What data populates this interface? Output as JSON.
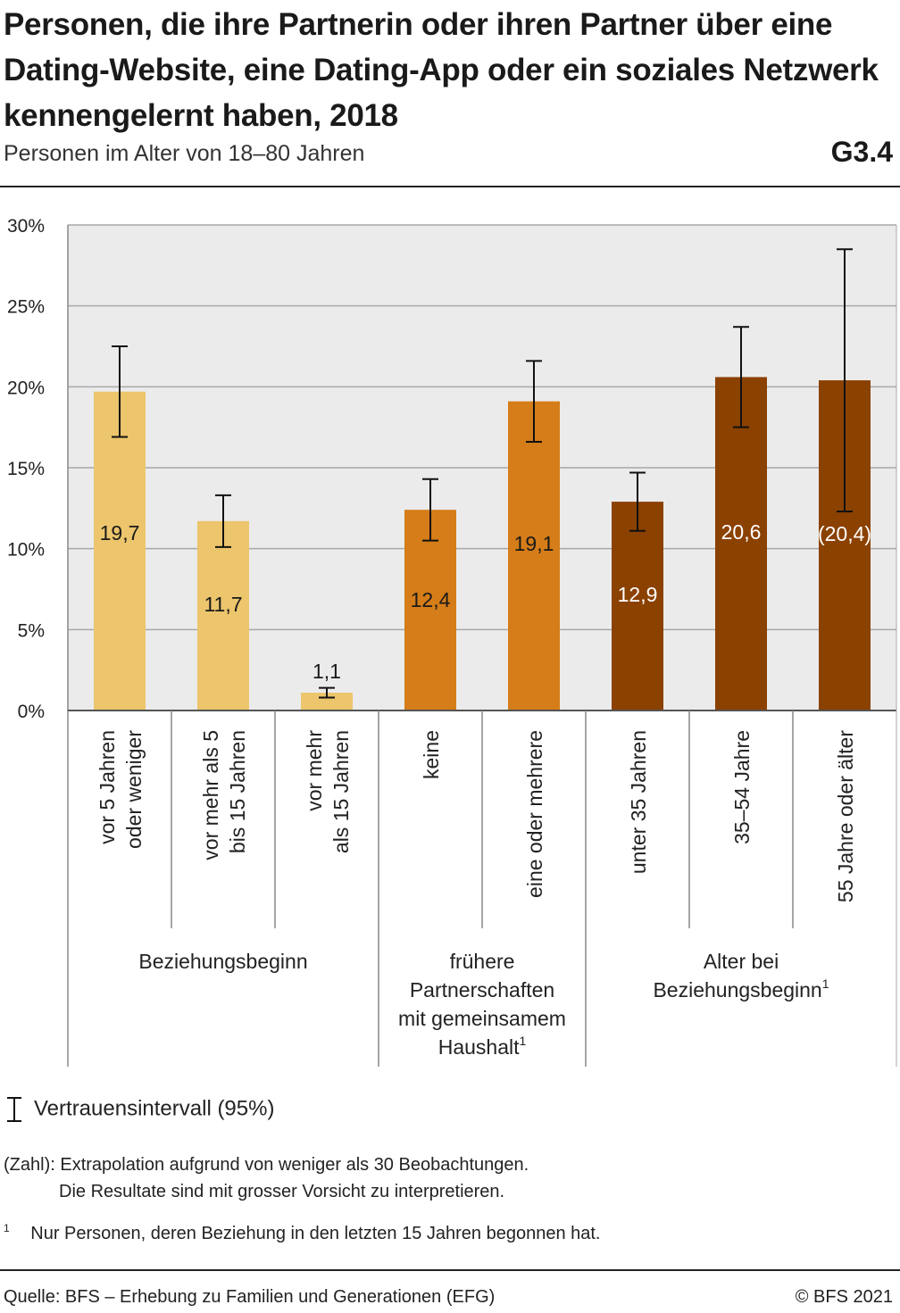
{
  "header": {
    "title": "Personen, die ihre Partnerin oder ihren Partner über eine Dating-Website, eine Dating-App oder ein soziales Netzwerk kennengelernt haben, 2018",
    "subtitle": "Personen im Alter von 18–80 Jahren",
    "code": "G3.4"
  },
  "chart_data": {
    "type": "bar",
    "ylim": [
      0,
      30
    ],
    "yticks": [
      0,
      5,
      10,
      15,
      20,
      25,
      30
    ],
    "ytick_labels": [
      "0%",
      "5%",
      "10%",
      "15%",
      "20%",
      "25%",
      "30%"
    ],
    "grid": true,
    "categories": [
      [
        "vor 5 Jahren",
        "oder weniger"
      ],
      [
        "vor mehr als 5",
        "bis 15 Jahren"
      ],
      [
        "vor mehr",
        "als 15 Jahren"
      ],
      [
        "keine"
      ],
      [
        "eine oder mehrere"
      ],
      [
        "unter 35 Jahren"
      ],
      [
        "35–54 Jahre"
      ],
      [
        "55 Jahre oder älter"
      ]
    ],
    "values": [
      19.7,
      11.7,
      1.1,
      12.4,
      19.1,
      12.9,
      20.6,
      20.4
    ],
    "value_labels": [
      "19,7",
      "11,7",
      "1,1",
      "12,4",
      "19,1",
      "12,9",
      "20,6",
      "(20,4)"
    ],
    "ci_low": [
      16.9,
      10.1,
      0.8,
      10.5,
      16.6,
      11.1,
      17.5,
      12.3
    ],
    "ci_high": [
      22.5,
      13.3,
      1.4,
      14.3,
      21.6,
      14.7,
      23.7,
      28.5
    ],
    "groups": [
      {
        "label": "Beziehungsbeginn",
        "sup": "",
        "start": 0,
        "end": 2,
        "color": "#ecc56c",
        "label_color": "#1a1a1a"
      },
      {
        "label": "frühere Partnerschaften mit gemeinsamem Haushalt",
        "lines": [
          "frühere",
          "Partnerschaften",
          "mit gemeinsamem",
          "Haushalt"
        ],
        "sup": "1",
        "start": 3,
        "end": 4,
        "color": "#d57d19",
        "label_color": "#1a1a1a"
      },
      {
        "label": "Alter bei Beziehungsbeginn",
        "lines": [
          "Alter bei",
          "Beziehungsbeginn"
        ],
        "sup": "1",
        "start": 5,
        "end": 7,
        "color": "#8b4100",
        "label_color": "#ffffff"
      }
    ]
  },
  "legend": {
    "ci_label": "Vertrauensintervall (95%)"
  },
  "notes": {
    "zahl_key": "(Zahl):",
    "zahl_line1": "Extrapolation aufgrund von weniger als 30 Beobachtungen.",
    "zahl_line2": "Die Resultate sind mit grosser Vorsicht zu interpretieren.",
    "footnote_mark": "1",
    "footnote_text": "Nur Personen, deren Beziehung in den letzten 15 Jahren begonnen hat."
  },
  "footer": {
    "source": "Quelle: BFS – Erhebung zu Familien und Generationen (EFG)",
    "copyright": "© BFS 2021"
  }
}
